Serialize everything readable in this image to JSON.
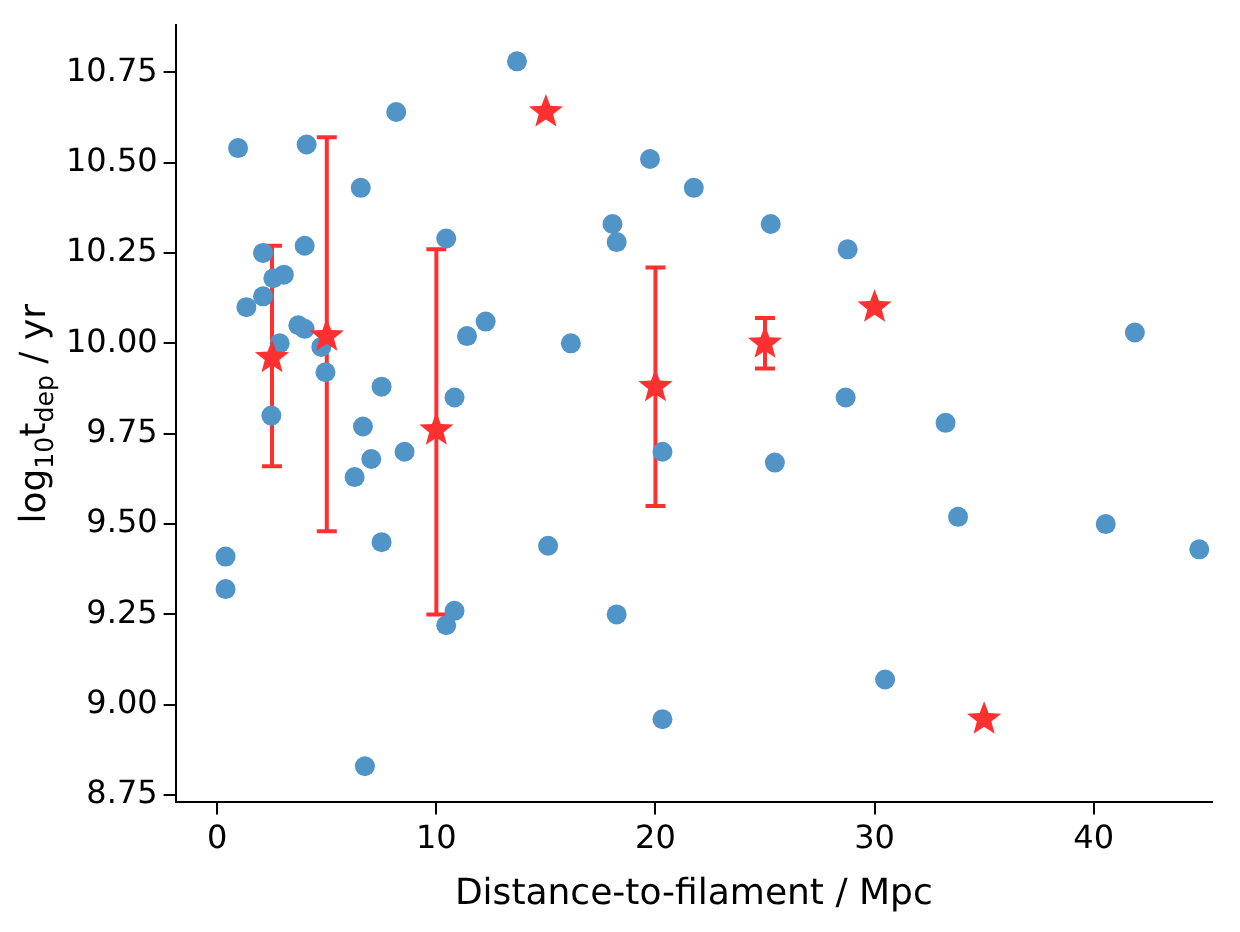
{
  "chart_data": {
    "type": "scatter",
    "xlabel": "Distance-to-filament / Mpc",
    "ylabel": "log$_{10}$t$_{dep}$ / yr",
    "xlim": [
      -1.9,
      45.4
    ],
    "ylim": [
      8.73,
      10.88
    ],
    "xticks": [
      0,
      10,
      20,
      30,
      40
    ],
    "yticks": [
      8.75,
      {
        "value": 9,
        "label": "9.00"
      },
      9.25,
      {
        "value": 9.5,
        "label": "9.50"
      },
      9.75,
      {
        "value": 10,
        "label": "10.00"
      },
      10.25,
      {
        "value": 10.5,
        "label": "10.50"
      },
      10.75
    ],
    "grid": false,
    "legend": false,
    "series": [
      {
        "marker": "circle",
        "color": "#5094c8",
        "x": [
          0.95,
          4.08,
          8.17,
          13.68,
          6.55,
          10.45,
          2.09,
          3.99,
          2.56,
          3.04,
          2.09,
          1.33,
          3.7,
          3.99,
          2.85,
          4.75,
          4.94,
          7.5,
          11.4,
          12.25,
          10.83,
          2.47,
          6.65,
          7.03,
          8.55,
          6.27,
          7.5,
          0.38,
          0.38,
          10.83,
          10.45,
          6.74,
          19.75,
          21.75,
          18.04,
          18.23,
          25.26,
          28.77,
          16.14,
          28.68,
          20.32,
          25.45,
          15.1,
          18.23,
          20.32,
          41.88,
          33.24,
          33.81,
          40.55,
          44.82,
          30.48
        ],
        "values": [
          10.54,
          10.55,
          10.64,
          10.78,
          10.43,
          10.29,
          10.25,
          10.27,
          10.18,
          10.19,
          10.13,
          10.1,
          10.05,
          10.04,
          10.0,
          9.99,
          9.92,
          9.88,
          10.02,
          10.06,
          9.85,
          9.8,
          9.77,
          9.68,
          9.7,
          9.63,
          9.45,
          9.41,
          9.32,
          9.26,
          9.22,
          8.83,
          10.51,
          10.43,
          10.33,
          10.28,
          10.33,
          10.26,
          10.0,
          9.85,
          9.7,
          9.67,
          9.44,
          9.25,
          8.96,
          10.03,
          9.78,
          9.52,
          9.5,
          9.43,
          9.07
        ]
      },
      {
        "marker": "star",
        "color": "#ff3030",
        "x": [
          2.5,
          5,
          10,
          15,
          20,
          25,
          30,
          35
        ],
        "values": [
          9.96,
          10.02,
          9.76,
          10.64,
          9.88,
          10.0,
          10.1,
          8.96
        ],
        "errors": [
          [
            9.66,
            10.27
          ],
          [
            9.48,
            10.57
          ],
          [
            9.25,
            10.26
          ],
          null,
          [
            9.55,
            10.21
          ],
          [
            9.93,
            10.07
          ],
          null,
          null
        ]
      }
    ]
  }
}
